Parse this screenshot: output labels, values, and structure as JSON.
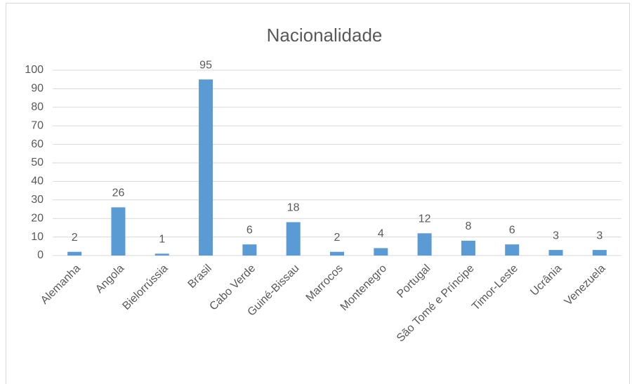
{
  "chart_data": {
    "type": "bar",
    "title": "Nacionalidade",
    "categories": [
      "Alemanha",
      "Angola",
      "Bielorrússia",
      "Brasil",
      "Cabo Verde",
      "Guiné-Bissau",
      "Marrocos",
      "Montenegro",
      "Portugal",
      "São Tomé e Príncipe",
      "Timor-Leste",
      "Ucrânia",
      "Venezuela"
    ],
    "values": [
      2,
      26,
      1,
      95,
      6,
      18,
      2,
      4,
      12,
      8,
      6,
      3,
      3
    ],
    "color": "#5b9bd5",
    "ylim": [
      0,
      100
    ],
    "yticks": [
      0,
      10,
      20,
      30,
      40,
      50,
      60,
      70,
      80,
      90,
      100
    ],
    "grid": true
  }
}
